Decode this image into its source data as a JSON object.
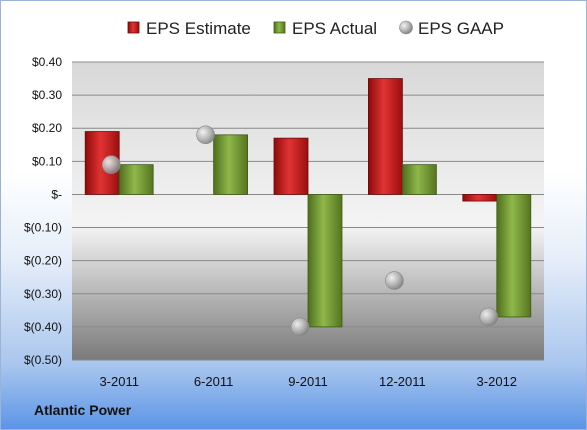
{
  "company": "Atlantic Power",
  "chart_data": {
    "type": "bar",
    "categories": [
      "3-2011",
      "6-2011",
      "9-2011",
      "12-2011",
      "3-2012"
    ],
    "series": [
      {
        "name": "EPS Estimate",
        "kind": "bar",
        "color": "#cc1111",
        "values": [
          0.19,
          null,
          0.17,
          0.35,
          -0.02
        ]
      },
      {
        "name": "EPS Actual",
        "kind": "bar",
        "color": "#77a033",
        "values": [
          0.09,
          0.18,
          -0.4,
          0.09,
          -0.37
        ]
      },
      {
        "name": "EPS GAAP",
        "kind": "marker",
        "color": "#c0c0c0",
        "values": [
          0.09,
          0.18,
          -0.4,
          -0.26,
          -0.37
        ]
      }
    ],
    "ylim": [
      -0.5,
      0.4
    ],
    "yticks": [
      {
        "value": 0.4,
        "label": "$0.40"
      },
      {
        "value": 0.3,
        "label": "$0.30"
      },
      {
        "value": 0.2,
        "label": "$0.20"
      },
      {
        "value": 0.1,
        "label": "$0.10"
      },
      {
        "value": 0.0,
        "label": "$-"
      },
      {
        "value": -0.1,
        "label": "$(0.10)"
      },
      {
        "value": -0.2,
        "label": "$(0.20)"
      },
      {
        "value": -0.3,
        "label": "$(0.30)"
      },
      {
        "value": -0.4,
        "label": "$(0.40)"
      },
      {
        "value": -0.5,
        "label": "$(0.50)"
      }
    ],
    "grid": true,
    "legend": "top"
  }
}
